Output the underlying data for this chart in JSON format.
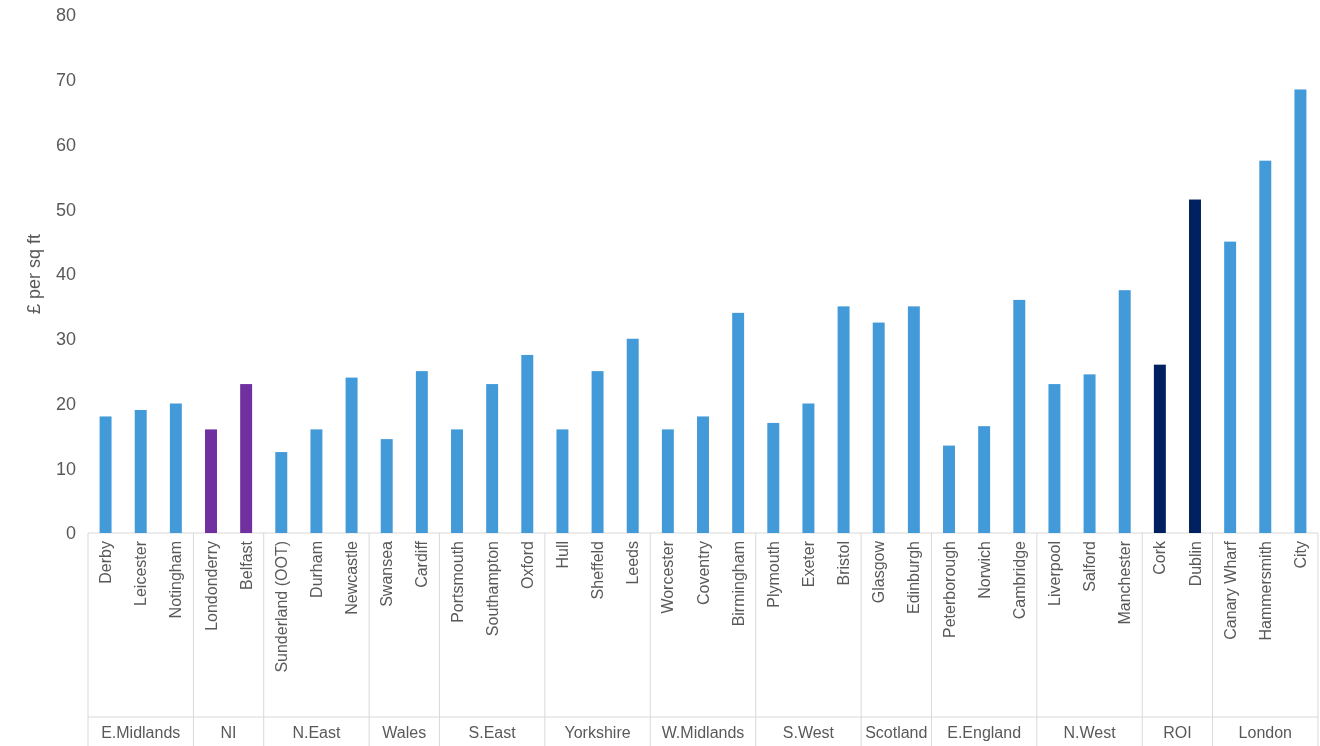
{
  "chart_data": {
    "type": "bar",
    "ylabel": "£ per sq ft",
    "categories": [
      "Derby",
      "Leicester",
      "Notingham",
      "Londonderry",
      "Belfast",
      "Sunderland (OOT)",
      "Durham",
      "Newcastle",
      "Swansea",
      "Cardiff",
      "Portsmouth",
      "Southampton",
      "Oxford",
      "Hull",
      "Sheffeld",
      "Leeds",
      "Worcester",
      "Coventry",
      "Birmingham",
      "Plymouth",
      "Exeter",
      "Bristol",
      "Glasgow",
      "Edinburgh",
      "Peterborough",
      "Norwich",
      "Cambridge",
      "Liverpool",
      "Salford",
      "Manchester",
      "Cork",
      "Dublin",
      "Canary Wharf",
      "Hammersmith",
      "City"
    ],
    "values": [
      18,
      19,
      20,
      16,
      23,
      12.5,
      16,
      24,
      14.5,
      25,
      16,
      23,
      27.5,
      16,
      25,
      30,
      16,
      18,
      34,
      17,
      20,
      35,
      32.5,
      35,
      13.5,
      16.5,
      36,
      23,
      24.5,
      37.5,
      26,
      51.5,
      45,
      57.5,
      68.5
    ],
    "colors": [
      "#439ad9",
      "#439ad9",
      "#439ad9",
      "#7030a0",
      "#7030a0",
      "#439ad9",
      "#439ad9",
      "#439ad9",
      "#439ad9",
      "#439ad9",
      "#439ad9",
      "#439ad9",
      "#439ad9",
      "#439ad9",
      "#439ad9",
      "#439ad9",
      "#439ad9",
      "#439ad9",
      "#439ad9",
      "#439ad9",
      "#439ad9",
      "#439ad9",
      "#439ad9",
      "#439ad9",
      "#439ad9",
      "#439ad9",
      "#439ad9",
      "#439ad9",
      "#439ad9",
      "#439ad9",
      "#002060",
      "#002060",
      "#439ad9",
      "#439ad9",
      "#439ad9"
    ],
    "ylim": [
      0,
      80
    ],
    "yticks": [
      0,
      10,
      20,
      30,
      40,
      50,
      60,
      70,
      80
    ],
    "grid": false,
    "annotations": [
      "E.Midlands",
      "NI",
      "N.East",
      "Wales",
      "S.East",
      "Yorkshire",
      "W.Midlands",
      "S.West",
      "Scotland",
      "E.England",
      "N.West",
      "ROI",
      "London"
    ]
  }
}
